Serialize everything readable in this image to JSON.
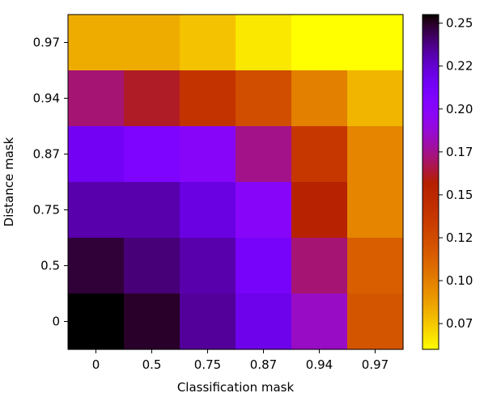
{
  "chart_data": {
    "type": "heatmap",
    "title": "",
    "xlabel": "Classification mask",
    "ylabel": "Distance mask",
    "x_categories": [
      "0",
      "0.5",
      "0.75",
      "0.87",
      "0.94",
      "0.97"
    ],
    "y_categories_top_to_bottom": [
      "0.97",
      "0.94",
      "0.87",
      "0.75",
      "0.5",
      "0"
    ],
    "values": [
      [
        0.084,
        0.084,
        0.077,
        0.066,
        0.06,
        0.06
      ],
      [
        0.172,
        0.162,
        0.141,
        0.124,
        0.1,
        0.081
      ],
      [
        0.215,
        0.207,
        0.2,
        0.175,
        0.138,
        0.098
      ],
      [
        0.232,
        0.232,
        0.221,
        0.2,
        0.155,
        0.098
      ],
      [
        0.248,
        0.24,
        0.232,
        0.212,
        0.172,
        0.115
      ],
      [
        0.255,
        0.25,
        0.235,
        0.219,
        0.185,
        0.12
      ]
    ],
    "colorbar": {
      "colormap": "gnuplot (reversed)",
      "range": [
        0.06,
        0.255
      ],
      "tick_labels": [
        "0.25",
        "0.22",
        "0.20",
        "0.17",
        "0.15",
        "0.12",
        "0.10",
        "0.07"
      ],
      "tick_values": [
        0.25,
        0.225,
        0.2,
        0.175,
        0.15,
        0.125,
        0.1,
        0.075
      ]
    }
  }
}
